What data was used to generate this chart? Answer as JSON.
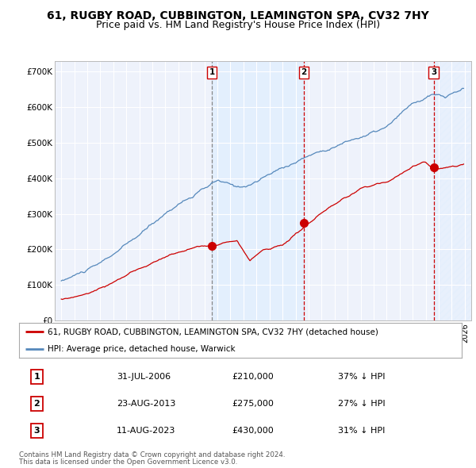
{
  "title": "61, RUGBY ROAD, CUBBINGTON, LEAMINGTON SPA, CV32 7HY",
  "subtitle": "Price paid vs. HM Land Registry's House Price Index (HPI)",
  "legend_label_red": "61, RUGBY ROAD, CUBBINGTON, LEAMINGTON SPA, CV32 7HY (detached house)",
  "legend_label_blue": "HPI: Average price, detached house, Warwick",
  "footer1": "Contains HM Land Registry data © Crown copyright and database right 2024.",
  "footer2": "This data is licensed under the Open Government Licence v3.0.",
  "transactions": [
    {
      "num": 1,
      "date": "31-JUL-2006",
      "price": "£210,000",
      "pct": "37% ↓ HPI",
      "year": 2006.58
    },
    {
      "num": 2,
      "date": "23-AUG-2013",
      "price": "£275,000",
      "pct": "27% ↓ HPI",
      "year": 2013.64
    },
    {
      "num": 3,
      "date": "11-AUG-2023",
      "price": "£430,000",
      "pct": "31% ↓ HPI",
      "year": 2023.61
    }
  ],
  "transaction_prices": [
    210000,
    275000,
    430000
  ],
  "vline_styles": [
    "grey_dash",
    "red_dash",
    "red_dash"
  ],
  "ylim": [
    0,
    730000
  ],
  "yticks": [
    0,
    100000,
    200000,
    300000,
    400000,
    500000,
    600000,
    700000
  ],
  "color_red": "#cc0000",
  "color_blue": "#5588bb",
  "color_blue_light": "#ddeeff",
  "background_chart": "#eef2fb",
  "background_fig": "#ffffff",
  "grid_color": "#ffffff",
  "title_fontsize": 10,
  "subtitle_fontsize": 9
}
